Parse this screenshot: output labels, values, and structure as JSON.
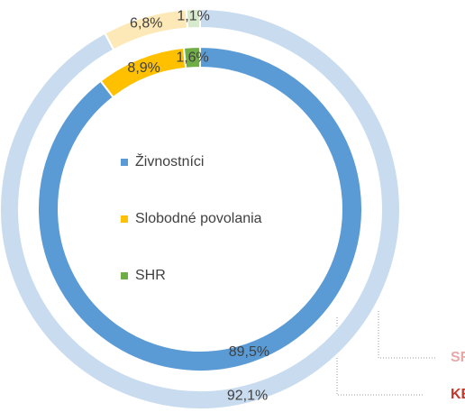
{
  "chart_data": {
    "type": "donut",
    "categories": [
      "Živnostníci",
      "Slobodné povolania",
      "SHR"
    ],
    "legend_colors": [
      "#5b9bd5",
      "#ffc000",
      "#70ad47"
    ],
    "series": [
      {
        "name": "SR",
        "color": "#e8a8a8",
        "colors": [
          "#c9dcef",
          "#fde9b8",
          "#d8eacc"
        ],
        "values": [
          92.1,
          6.8,
          1.1
        ],
        "value_labels": [
          "92,1%",
          "6,8%",
          "1,1%"
        ]
      },
      {
        "name": "KE",
        "color": "#c0392b",
        "colors": [
          "#5b9bd5",
          "#ffc000",
          "#70ad47"
        ],
        "values": [
          89.5,
          8.9,
          1.6
        ],
        "value_labels": [
          "89,5%",
          "8,9%",
          "1,6%"
        ]
      }
    ]
  }
}
